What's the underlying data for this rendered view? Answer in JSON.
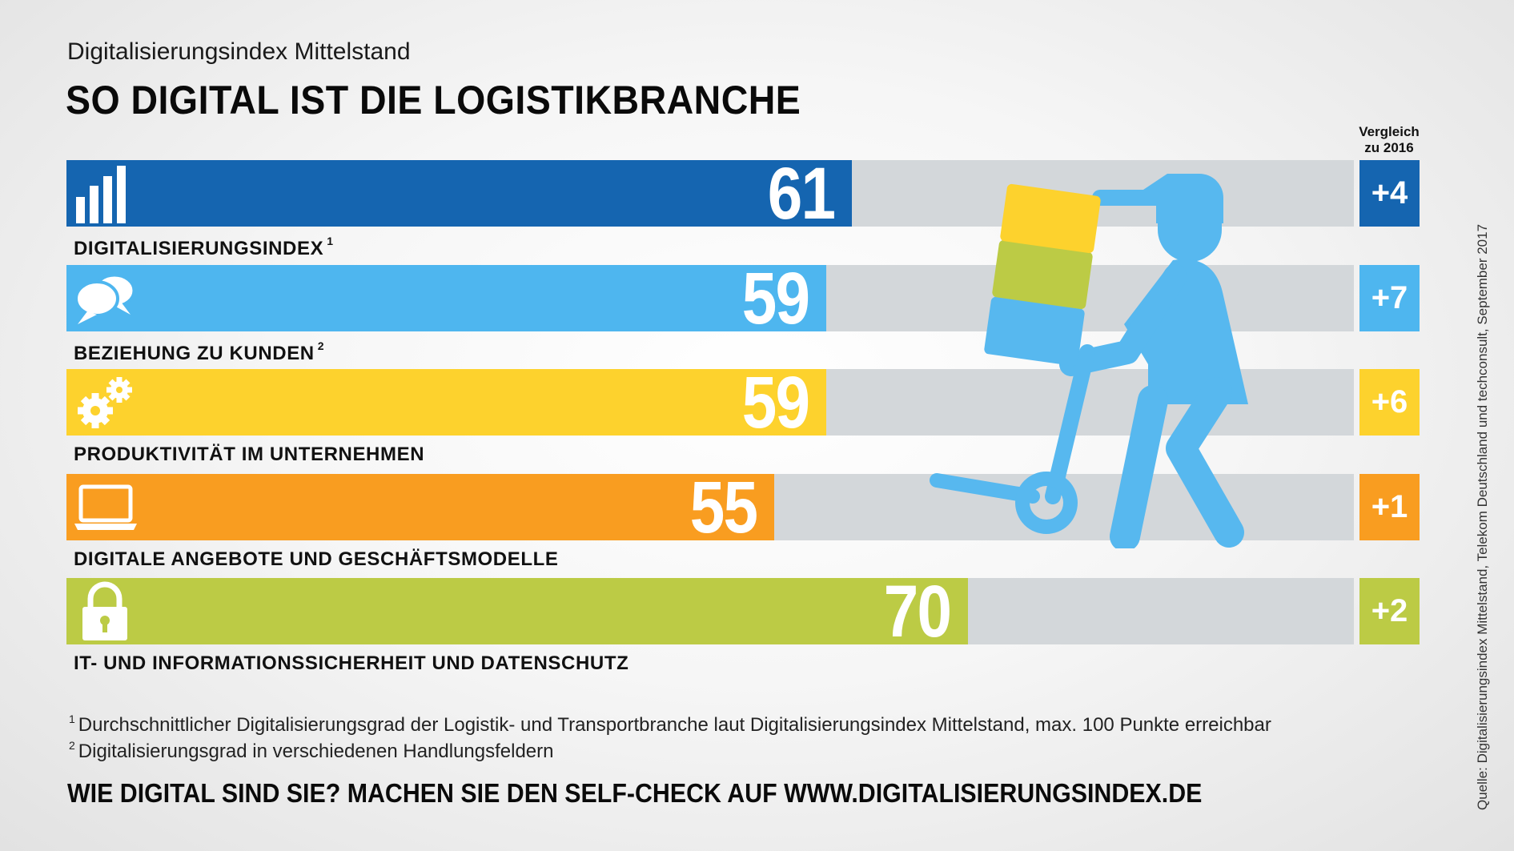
{
  "header": {
    "kicker": "Digitalisierungsindex Mittelstand",
    "title": "SO DIGITAL IST DIE LOGISTIKBRANCHE",
    "comparison_label_line1": "Vergleich",
    "comparison_label_line2": "zu 2016"
  },
  "chart_data": {
    "type": "bar",
    "orientation": "horizontal",
    "title": "SO DIGITAL IST DIE LOGISTIKBRANCHE",
    "xlim": [
      0,
      100
    ],
    "grid": false,
    "categories": [
      "DIGITALISIERUNGSINDEX",
      "BEZIEHUNG ZU KUNDEN",
      "PRODUKTIVITÄT IM UNTERNEHMEN",
      "DIGITALE ANGEBOTE UND GESCHÄFTSMODELLE",
      "IT- UND INFORMATIONSSICHERHEIT UND DATENSCHUTZ"
    ],
    "values": [
      61,
      59,
      59,
      55,
      70
    ],
    "comparison_2016": [
      "+4",
      "+7",
      "+6",
      "+1",
      "+2"
    ]
  },
  "rows": [
    {
      "label": "DIGITALISIERUNGSINDEX",
      "sup": "1",
      "value": "61",
      "delta": "+4",
      "color": "#1565b0",
      "icon": "bar-chart-icon"
    },
    {
      "label": "BEZIEHUNG ZU KUNDEN",
      "sup": "2",
      "value": "59",
      "delta": "+7",
      "color": "#4eb6ef",
      "icon": "speech-bubbles-icon"
    },
    {
      "label": "PRODUKTIVITÄT IM UNTERNEHMEN",
      "sup": "",
      "value": "59",
      "delta": "+6",
      "color": "#fdd22d",
      "icon": "gears-icon"
    },
    {
      "label": "DIGITALE ANGEBOTE UND GESCHÄFTSMODELLE",
      "sup": "",
      "value": "55",
      "delta": "+1",
      "color": "#f99d20",
      "icon": "laptop-icon"
    },
    {
      "label": "IT- UND INFORMATIONSSICHERHEIT UND DATENSCHUTZ",
      "sup": "",
      "value": "70",
      "delta": "+2",
      "color": "#bccb45",
      "icon": "padlock-icon"
    }
  ],
  "footnotes": [
    {
      "mark": "1",
      "text": "Durchschnittlicher Digitalisierungsgrad der Logistik- und Transportbranche laut Digitalisierungsindex Mittelstand, max. 100 Punkte erreichbar"
    },
    {
      "mark": "2",
      "text": "Digitalisierungsgrad in verschiedenen Handlungsfeldern"
    }
  ],
  "cta": "WIE DIGITAL SIND SIE? MACHEN SIE DEN SELF-CHECK AUF WWW.DIGITALISIERUNGSINDEX.DE",
  "source": "Quelle: Digitalisierungsindex Mittelstand, Telekom Deutschland und techconsult, September 2017",
  "illustration": "delivery-worker-with-hand-truck"
}
